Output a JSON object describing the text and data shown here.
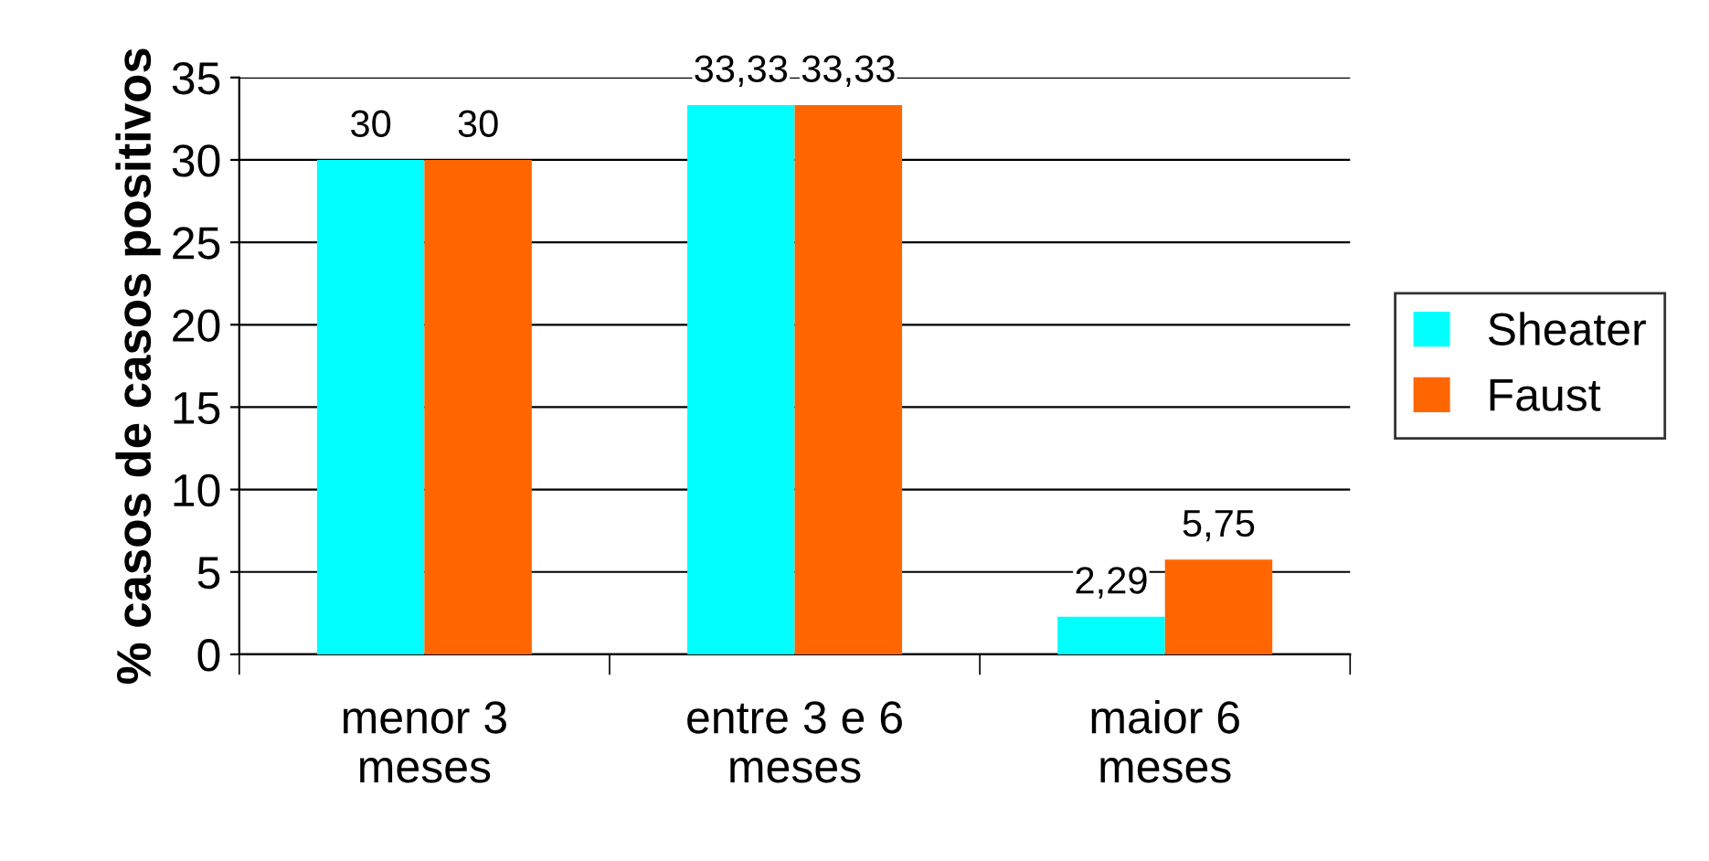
{
  "chart_data": {
    "type": "bar",
    "ylabel": "% casos de casos positivos",
    "categories": [
      "menor 3\nmeses",
      "entre 3 e 6\nmeses",
      "maior 6\nmeses"
    ],
    "series": [
      {
        "name": "Sheater",
        "color": "#00ffff",
        "values": [
          30,
          33.33,
          2.29
        ],
        "value_labels": [
          "30",
          "33,33",
          "2,29"
        ]
      },
      {
        "name": "Faust",
        "color": "#ff6600",
        "values": [
          30,
          33.33,
          5.75
        ],
        "value_labels": [
          "30",
          "33,33",
          "5,75"
        ]
      }
    ],
    "ylim": [
      0,
      35
    ],
    "yticks": [
      0,
      5,
      10,
      15,
      20,
      25,
      30,
      35
    ],
    "grid": "y",
    "legend": "right"
  }
}
